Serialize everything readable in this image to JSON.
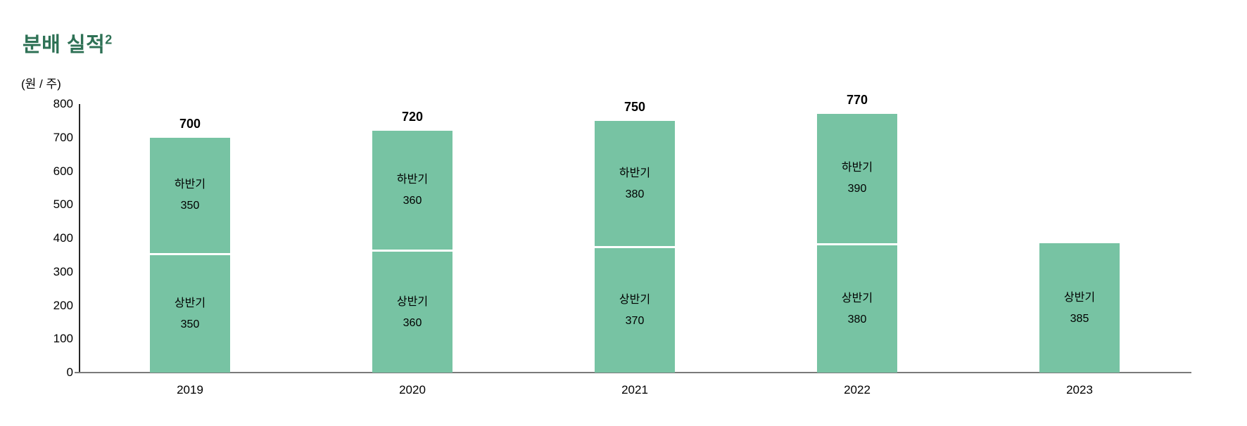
{
  "page": {
    "title": "분배 실적",
    "title_superscript": "2",
    "unit_label": "(원 / 주)"
  },
  "colors": {
    "title_green": "#2E7155",
    "bar_green": "#77C3A3",
    "segment_divider": "#FFFFFF",
    "y_axis_line": "#262626",
    "x_axis_line": "#7A7A7A",
    "text": "#000000"
  },
  "chart_data": {
    "type": "bar",
    "stacked": true,
    "title": "분배 실적²",
    "ylabel": "(원 / 주)",
    "xlabel": "",
    "categories": [
      "2019",
      "2020",
      "2021",
      "2022",
      "2023"
    ],
    "series": [
      {
        "name": "상반기",
        "values": [
          350,
          360,
          370,
          380,
          385
        ]
      },
      {
        "name": "하반기",
        "values": [
          350,
          360,
          380,
          390,
          null
        ]
      }
    ],
    "totals": [
      700,
      720,
      750,
      770,
      null
    ],
    "total_labels": [
      "700",
      "720",
      "750",
      "770",
      ""
    ],
    "ylim": [
      0,
      800
    ],
    "yticks": [
      0,
      100,
      200,
      300,
      400,
      500,
      600,
      700,
      800
    ],
    "grid": false,
    "legend_position": "none",
    "value_labels_inside_bars": true
  }
}
